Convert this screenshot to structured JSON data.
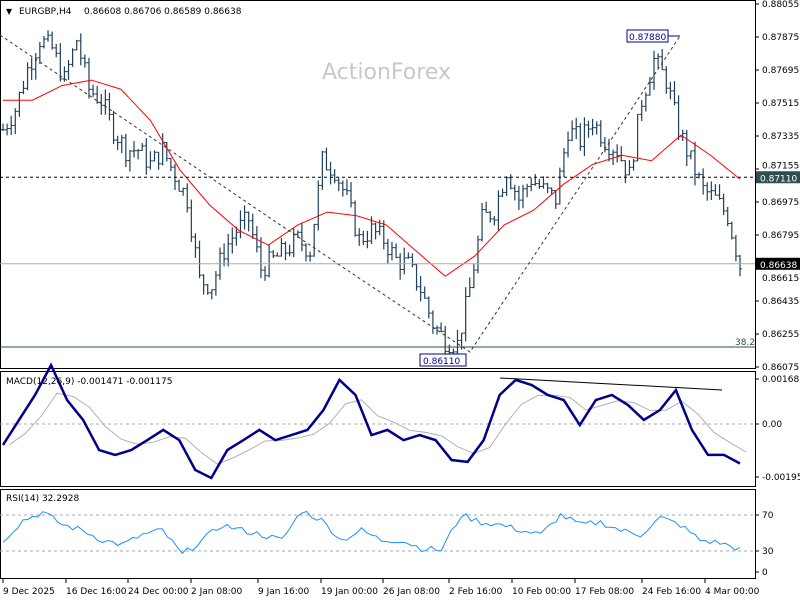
{
  "header": {
    "symbol": "EURGBP,H4",
    "ohlc": "0.86608 0.86706 0.86589 0.86638"
  },
  "watermark": "ActionForex",
  "colors": {
    "bars": "#1f3f5a",
    "ma": "#ff0000",
    "macd": "#00008b",
    "signal": "#b0b0b0",
    "rsi": "#1e90ff"
  },
  "chart_data": [
    {
      "type": "bar",
      "panel": "price",
      "title": "EURGBP,H4",
      "y_ticks": [
        "0.88055",
        "0.87875",
        "0.87695",
        "0.87515",
        "0.87335",
        "0.87155",
        "0.86975",
        "0.86795",
        "0.86615",
        "0.86435",
        "0.86255",
        "0.86075"
      ],
      "ylim": [
        0.86075,
        0.88055
      ],
      "x_ticks": [
        "9 Dec 2025",
        "16 Dec 16:00",
        "24 Dec 00:00",
        "2 Jan 08:00",
        "9 Jan 16:00",
        "19 Jan 00:00",
        "26 Jan 08:00",
        "2 Feb 16:00",
        "10 Feb 00:00",
        "17 Feb 08:00",
        "24 Feb 16:00",
        "4 Mar 00:00"
      ],
      "closes": [
        0.8737,
        0.8748,
        0.877,
        0.8786,
        0.8781,
        0.8764,
        0.8786,
        0.8759,
        0.8753,
        0.8737,
        0.8726,
        0.8726,
        0.8718,
        0.8726,
        0.8712,
        0.8699,
        0.8655,
        0.8652,
        0.8671,
        0.8682,
        0.8688,
        0.8661,
        0.8666,
        0.8671,
        0.8677,
        0.8671,
        0.872,
        0.8715,
        0.8699,
        0.8677,
        0.8682,
        0.8677,
        0.8666,
        0.8663,
        0.865,
        0.8631,
        0.8622,
        0.862,
        0.865,
        0.8688,
        0.8693,
        0.8715,
        0.8699,
        0.871,
        0.8704,
        0.8699,
        0.8737,
        0.8731,
        0.8742,
        0.8731,
        0.8726,
        0.8712,
        0.8753,
        0.8775,
        0.8764,
        0.8737,
        0.872,
        0.8704,
        0.8699,
        0.869,
        0.8663
      ],
      "moving_average": [
        0.8753,
        0.8753,
        0.8761,
        0.8764,
        0.8759,
        0.8742,
        0.8715,
        0.8696,
        0.8682,
        0.8674,
        0.8685,
        0.8692,
        0.869,
        0.8685,
        0.8671,
        0.8657,
        0.8668,
        0.8685,
        0.8693,
        0.8707,
        0.8718,
        0.8723,
        0.872,
        0.8734,
        0.8723,
        0.871
      ],
      "current_price": "0.86638",
      "level_line": "0.87110",
      "fib_label": "38.2",
      "annotations": {
        "high": "0.87880",
        "low": "0.86110"
      }
    },
    {
      "type": "line",
      "panel": "macd",
      "title": "MACD(12,26,9) -0.001471 -0.001175",
      "y_ticks": [
        "0.001688",
        "0.00",
        "-0.001953"
      ],
      "macd": [
        -0.00078,
        0.00015,
        0.00108,
        0.00219,
        0.00089,
        0.00015,
        -0.00097,
        -0.00115,
        -0.00097,
        -0.0006,
        -0.00022,
        -0.0006,
        -0.00171,
        -0.00201,
        -0.00097,
        -0.0006,
        -0.00022,
        -0.0006,
        -0.00041,
        -0.00022,
        0.00052,
        0.00164,
        0.00108,
        -0.00041,
        -0.00022,
        -0.0006,
        -0.00041,
        -0.0006,
        -0.00134,
        -0.00141,
        -0.0006,
        0.00108,
        0.00164,
        0.00145,
        0.00108,
        0.00089,
        -4e-05,
        0.00089,
        0.00108,
        0.00071,
        0.00015,
        0.00052,
        0.00126,
        -0.00022,
        -0.00115,
        -0.00115,
        -0.00147
      ]
    },
    {
      "type": "line",
      "panel": "rsi",
      "title": "RSI(14) 32.2928",
      "y_ticks": [
        "70",
        "30",
        "0"
      ],
      "rsi": [
        42,
        64,
        73,
        59,
        53,
        42,
        37,
        48,
        53,
        26,
        42,
        59,
        53,
        48,
        42,
        75,
        64,
        42,
        53,
        42,
        42,
        33,
        31,
        70,
        62,
        59,
        53,
        48,
        70,
        59,
        62,
        53,
        48,
        67,
        59,
        42,
        39,
        32
      ]
    }
  ]
}
